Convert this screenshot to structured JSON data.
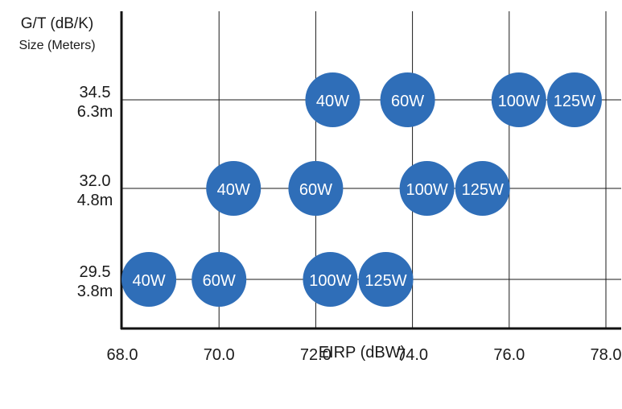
{
  "chart_data": {
    "type": "scatter",
    "title": "",
    "xlabel": "EIRP (dBW)",
    "ylabel_lines": [
      "G/T (dB/K)",
      "Size (Meters)"
    ],
    "x_ticks": [
      "68.0",
      "70.0",
      "72.0",
      "74.0",
      "76.0",
      "78.0"
    ],
    "x_tick_values": [
      68,
      70,
      72,
      74,
      76,
      78
    ],
    "xlim": [
      67.95,
      78.4
    ],
    "y_categories": [
      {
        "gt": "29.5",
        "size": "3.8m"
      },
      {
        "gt": "32.0",
        "size": "4.8m"
      },
      {
        "gt": "34.5",
        "size": "6.3m"
      }
    ],
    "grid": true,
    "marker_color": "#2f6eb8",
    "points": [
      {
        "row": 0,
        "x": 68.55,
        "label": "40W"
      },
      {
        "row": 0,
        "x": 70.0,
        "label": "60W"
      },
      {
        "row": 0,
        "x": 72.3,
        "label": "100W"
      },
      {
        "row": 0,
        "x": 73.45,
        "label": "125W"
      },
      {
        "row": 1,
        "x": 70.3,
        "label": "40W"
      },
      {
        "row": 1,
        "x": 72.0,
        "label": "60W"
      },
      {
        "row": 1,
        "x": 74.3,
        "label": "100W"
      },
      {
        "row": 1,
        "x": 75.45,
        "label": "125W"
      },
      {
        "row": 2,
        "x": 72.35,
        "label": "40W"
      },
      {
        "row": 2,
        "x": 73.9,
        "label": "60W"
      },
      {
        "row": 2,
        "x": 76.2,
        "label": "100W"
      },
      {
        "row": 2,
        "x": 77.35,
        "label": "125W"
      }
    ]
  }
}
